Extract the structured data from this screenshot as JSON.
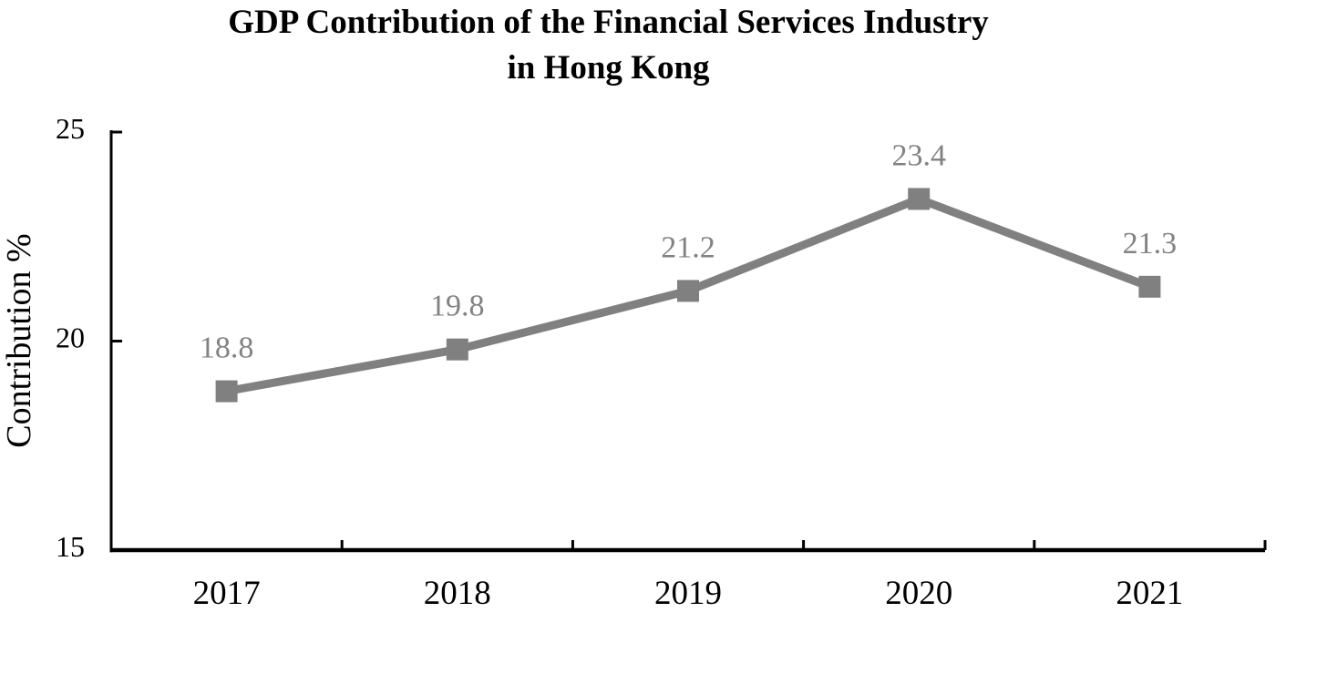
{
  "chart_data": {
    "type": "line",
    "title": "GDP Contribution of the Financial Services Industry",
    "title_line2": "in Hong Kong",
    "categories": [
      "2017",
      "2018",
      "2019",
      "2020",
      "2021"
    ],
    "series": [
      {
        "name": "GDP Contribution",
        "values": [
          18.8,
          19.8,
          21.2,
          23.4,
          21.3
        ]
      }
    ],
    "data_labels": [
      "18.8",
      "19.8",
      "21.2",
      "23.4",
      "21.3"
    ],
    "xlabel": "",
    "ylabel": "Contribution %",
    "ylim": [
      15,
      25
    ],
    "yticks": [
      15,
      20,
      25
    ],
    "ytick_labels": [
      "15",
      "20",
      "25"
    ],
    "grid": false,
    "legend": "none",
    "marker": "square",
    "colors": {
      "line": "#808080",
      "marker": "#808080",
      "data_label": "#828282",
      "axis": "#000000",
      "tick_text": "#000000",
      "title_text": "#000000",
      "background": "#ffffff"
    }
  }
}
